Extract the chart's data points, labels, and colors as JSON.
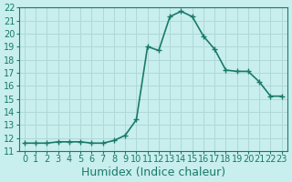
{
  "x": [
    0,
    1,
    2,
    3,
    4,
    5,
    6,
    7,
    8,
    9,
    10,
    11,
    12,
    13,
    14,
    15,
    16,
    17,
    18,
    19,
    20,
    21,
    22,
    23
  ],
  "y": [
    11.6,
    11.6,
    11.6,
    11.7,
    11.7,
    11.7,
    11.6,
    11.6,
    11.8,
    12.2,
    13.4,
    19.0,
    18.7,
    21.3,
    21.7,
    21.3,
    19.8,
    18.8,
    17.2,
    17.1,
    17.1,
    16.3,
    15.2,
    15.2
  ],
  "line_color": "#1a7a6a",
  "marker": "+",
  "marker_size": 5,
  "marker_color": "#1a7a6a",
  "bg_color": "#c8eeee",
  "grid_color": "#b0d8d8",
  "xlabel": "Humidex (Indice chaleur)",
  "xlabel_fontsize": 9,
  "xlim": [
    -0.5,
    23.5
  ],
  "ylim": [
    11,
    22
  ],
  "yticks": [
    11,
    12,
    13,
    14,
    15,
    16,
    17,
    18,
    19,
    20,
    21,
    22
  ],
  "xticks": [
    0,
    1,
    2,
    3,
    4,
    5,
    6,
    7,
    8,
    9,
    10,
    11,
    12,
    13,
    14,
    15,
    16,
    17,
    18,
    19,
    20,
    21,
    22,
    23
  ],
  "tick_fontsize": 7,
  "line_width": 1.2
}
